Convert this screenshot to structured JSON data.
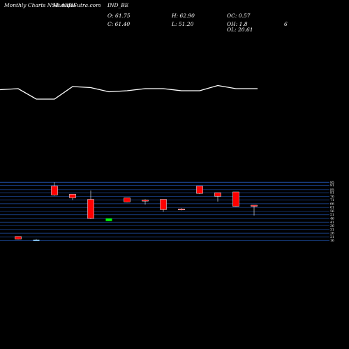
{
  "header": {
    "site": "Monthly Charts NSE ARIH",
    "site_url": "MunafaSutra.com",
    "symbol": "IND_BE",
    "open": "O: 61.75",
    "close": "C: 61.40",
    "high": "H: 62.90",
    "low": "L: 51.20",
    "oc": "OC: 0.57",
    "oh": "OH: 1.8",
    "ol": "OL: 20.61",
    "extra": "6"
  },
  "colors": {
    "background": "#000000",
    "text": "#ffffff",
    "line": "#ffffff",
    "grid": "#1f4fa8",
    "bear": "#ff0000",
    "bull": "#00ff00",
    "wick": "#ffffff"
  },
  "chart_data": [
    {
      "type": "line",
      "title": "",
      "x": [
        1,
        2,
        3,
        4,
        5,
        6,
        7,
        8,
        9,
        10,
        11,
        12,
        13,
        14
      ],
      "values": [
        66,
        61,
        61,
        67,
        66.5,
        64.5,
        65,
        66,
        66,
        65,
        65,
        67.5,
        66,
        66
      ],
      "ylim": [
        55,
        75
      ]
    },
    {
      "type": "candlestick",
      "title": "",
      "ylim": [
        10,
        100
      ],
      "grid": true,
      "ticks": [
        "95",
        "91",
        "85",
        "81",
        "76",
        "71",
        "66",
        "61",
        "56",
        "51",
        "46",
        "41",
        "36",
        "31",
        "26",
        "21",
        "16"
      ],
      "candles": [
        {
          "open": 21.5,
          "high": 21.5,
          "low": 17.5,
          "close": 18,
          "direction": "down"
        },
        {
          "open": 17,
          "high": 18,
          "low": 16,
          "close": 16.5,
          "direction": "flat"
        },
        {
          "open": 90,
          "high": 95,
          "low": 77,
          "close": 78,
          "direction": "down"
        },
        {
          "open": 79,
          "high": 79,
          "low": 71,
          "close": 74,
          "direction": "down"
        },
        {
          "open": 72,
          "high": 84,
          "low": 45,
          "close": 46,
          "direction": "down"
        },
        {
          "open": 46,
          "high": 46,
          "low": 42.5,
          "close": 42.5,
          "direction": "up"
        },
        {
          "open": 74,
          "high": 74,
          "low": 68,
          "close": 68.5,
          "direction": "down"
        },
        {
          "open": 71,
          "high": 72,
          "low": 65,
          "close": 70,
          "direction": "down"
        },
        {
          "open": 72,
          "high": 72,
          "low": 55,
          "close": 58,
          "direction": "down"
        },
        {
          "open": 59,
          "high": 60,
          "low": 57,
          "close": 58,
          "direction": "down"
        },
        {
          "open": 90,
          "high": 90,
          "low": 79,
          "close": 80,
          "direction": "down"
        },
        {
          "open": 81,
          "high": 81,
          "low": 69,
          "close": 76,
          "direction": "down"
        },
        {
          "open": 82,
          "high": 82,
          "low": 62,
          "close": 62.5,
          "direction": "down"
        },
        {
          "open": 64,
          "high": 64,
          "low": 50,
          "close": 62.5,
          "direction": "down"
        }
      ]
    }
  ]
}
